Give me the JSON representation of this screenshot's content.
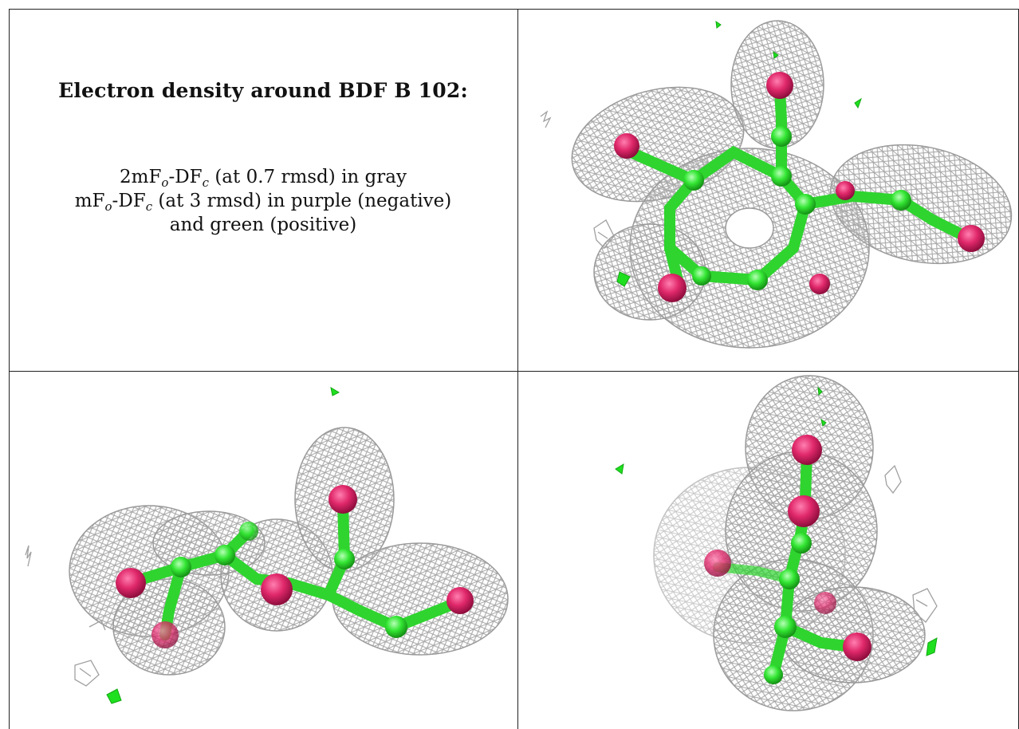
{
  "caption": {
    "title": "Electron density around BDF B 102:",
    "line1": {
      "m": "2mF",
      "sub1": "o",
      "mid": "-DF",
      "sub2": "c",
      "rest": " (at 0.7 rmsd) in gray"
    },
    "line2": {
      "m": "mF",
      "sub1": "o",
      "mid": "-DF",
      "sub2": "c",
      "rest": " (at 3 rmsd) in purple (negative)"
    },
    "line3": "and green (positive)"
  },
  "colors": {
    "mesh": "#b0b0b0",
    "carbon": "#33e633",
    "oxygen": "#e0286a",
    "positive_density": "#1fe01f",
    "border": "#222222"
  }
}
